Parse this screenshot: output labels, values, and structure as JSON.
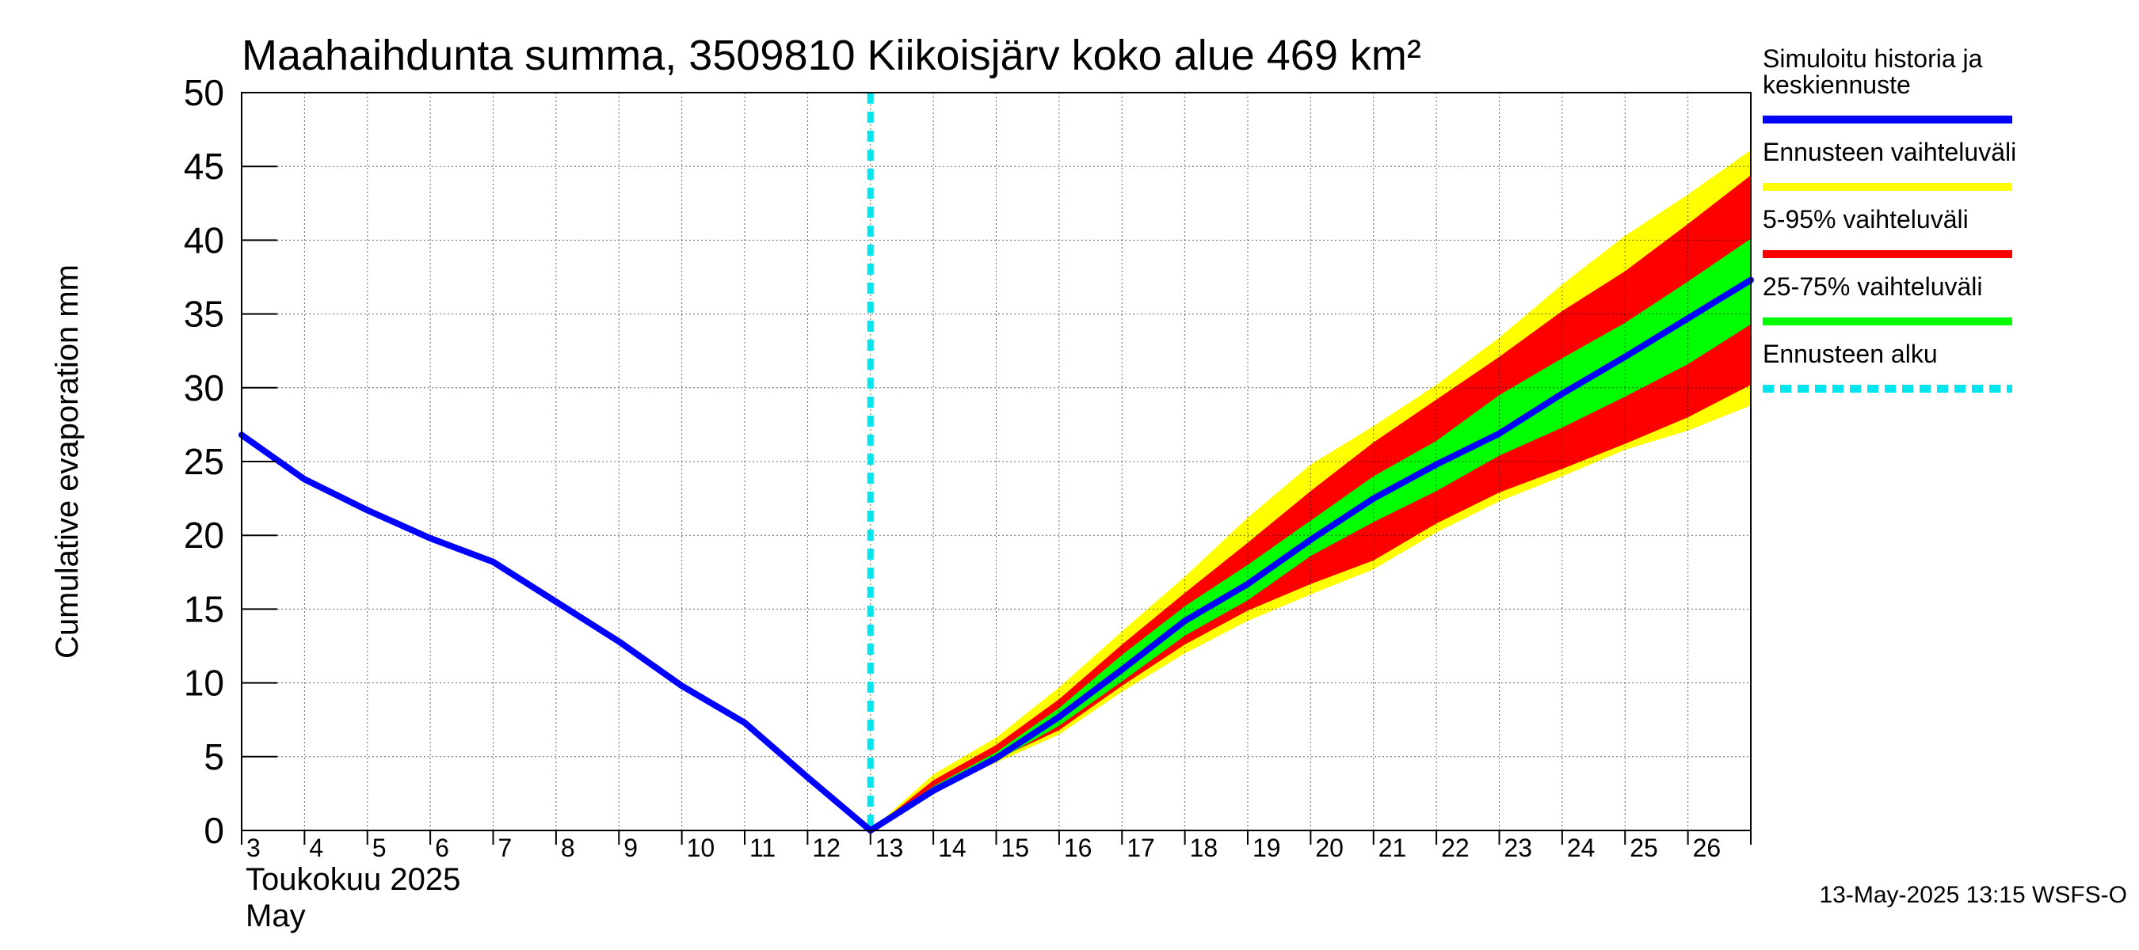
{
  "chart_data": {
    "type": "area",
    "title": "Maahaihdunta summa, 3509810 Kiikoisjärv koko alue 469 km²",
    "ylabel": "Cumulative evaporation   mm",
    "month_label_fi": "Toukokuu  2025",
    "month_label_en": "May",
    "footer": "13-May-2025 13:15 WSFS-O",
    "x_ticks": [
      "3",
      "4",
      "5",
      "6",
      "7",
      "8",
      "9",
      "10",
      "11",
      "12",
      "13",
      "14",
      "15",
      "16",
      "17",
      "18",
      "19",
      "20",
      "21",
      "22",
      "23",
      "24",
      "25",
      "26"
    ],
    "x_range": [
      3,
      27
    ],
    "ylim": [
      0,
      50
    ],
    "y_ticks": [
      0,
      5,
      10,
      15,
      20,
      25,
      30,
      35,
      40,
      45,
      50
    ],
    "grid": true,
    "forecast_start": 13,
    "legend_position": "right",
    "colors": {
      "history": "#0000ff",
      "range_full": "#ffff00",
      "range_5_95": "#ff0000",
      "range_25_75": "#00ff00",
      "forecast_start": "#00e5ee"
    },
    "legend": [
      {
        "label": "Simuloitu historia ja keskiennuste",
        "lines": [
          "Simuloitu historia ja",
          "keskiennuste"
        ],
        "kind": "line",
        "color": "#0000ff"
      },
      {
        "label": "Ennusteen vaihteluväli",
        "lines": [
          "Ennusteen vaihteluväli"
        ],
        "kind": "line",
        "color": "#ffff00"
      },
      {
        "label": "5-95% vaihteluväli",
        "lines": [
          "5-95% vaihteluväli"
        ],
        "kind": "line",
        "color": "#ff0000"
      },
      {
        "label": "25-75% vaihteluväli",
        "lines": [
          "25-75% vaihteluväli"
        ],
        "kind": "line",
        "color": "#00ff00"
      },
      {
        "label": "Ennusteen alku",
        "lines": [
          "Ennusteen alku"
        ],
        "kind": "dashed",
        "color": "#00e5ee"
      }
    ],
    "series": [
      {
        "name": "Simuloitu historia ja keskiennuste",
        "x": [
          3,
          4,
          5,
          6,
          7,
          8,
          9,
          10,
          11,
          12,
          13,
          14,
          15,
          16,
          17,
          18,
          19,
          20,
          21,
          22,
          23,
          24,
          25,
          26,
          27
        ],
        "values": [
          26.8,
          23.8,
          21.7,
          19.8,
          18.2,
          15.5,
          12.8,
          9.8,
          7.3,
          3.6,
          0,
          2.7,
          4.9,
          7.7,
          10.9,
          14.2,
          16.7,
          19.7,
          22.5,
          24.8,
          26.9,
          29.6,
          32.1,
          34.7,
          37.3
        ]
      }
    ],
    "bands": [
      {
        "name": "Ennusteen vaihteluväli",
        "x": [
          13,
          14,
          15,
          16,
          17,
          18,
          19,
          20,
          21,
          22,
          23,
          24,
          25,
          26,
          27
        ],
        "upper": [
          0,
          3.8,
          6.3,
          9.7,
          13.5,
          17.2,
          21.2,
          24.8,
          27.4,
          30.2,
          33.4,
          37.0,
          40.3,
          43.1,
          46.1
        ],
        "lower": [
          0,
          2.6,
          4.6,
          6.5,
          9.4,
          12.0,
          14.2,
          16.0,
          17.7,
          20.2,
          22.3,
          24.0,
          25.8,
          27.1,
          28.8
        ]
      },
      {
        "name": "5-95% vaihteluväli",
        "x": [
          13,
          14,
          15,
          16,
          17,
          18,
          19,
          20,
          21,
          22,
          23,
          24,
          25,
          26,
          27
        ],
        "upper": [
          0,
          3.4,
          5.8,
          8.9,
          12.6,
          16.1,
          19.5,
          23.0,
          26.3,
          29.2,
          32.1,
          35.2,
          37.9,
          41.1,
          44.4
        ],
        "lower": [
          0,
          2.7,
          4.8,
          6.8,
          9.8,
          12.6,
          14.9,
          16.7,
          18.3,
          20.8,
          22.9,
          24.5,
          26.2,
          28.0,
          30.2
        ]
      },
      {
        "name": "25-75% vaihteluväli",
        "x": [
          13,
          14,
          15,
          16,
          17,
          18,
          19,
          20,
          21,
          22,
          23,
          24,
          25,
          26,
          27
        ],
        "upper": [
          0,
          3.0,
          5.3,
          8.3,
          11.9,
          15.2,
          18.0,
          21.0,
          24.0,
          26.4,
          29.5,
          32.0,
          34.4,
          37.2,
          40.1
        ],
        "lower": [
          0,
          2.5,
          4.7,
          7.1,
          10.1,
          13.2,
          15.6,
          18.6,
          20.9,
          23.0,
          25.4,
          27.3,
          29.4,
          31.6,
          34.3
        ]
      }
    ]
  }
}
